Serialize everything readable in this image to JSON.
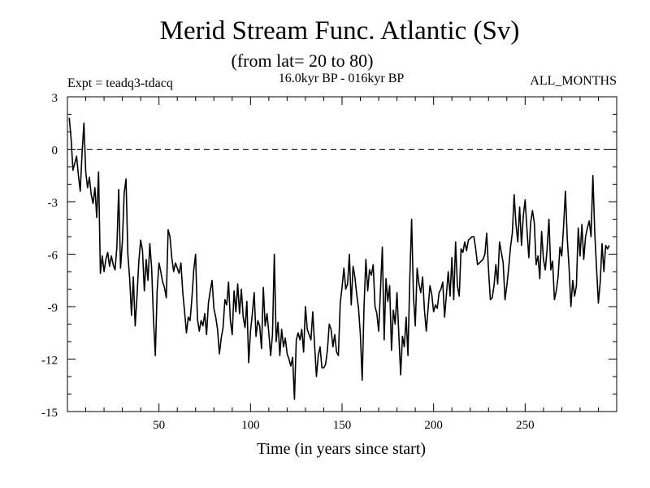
{
  "chart_data": {
    "type": "line",
    "title": "Merid Stream Func. Atlantic (Sv)",
    "subtitle": "(from lat= 20 to 80)",
    "experiment_label": "Expt = teadq3-tdacq",
    "period_label": "16.0kyr BP - 016kyr BP",
    "months_label": "ALL_MONTHS",
    "xlabel": "Time (in years since start)",
    "ylabel": "",
    "xlim": [
      0,
      300
    ],
    "ylim": [
      -15,
      3
    ],
    "x_ticks": [
      50,
      100,
      150,
      200,
      250
    ],
    "y_ticks": [
      3,
      0,
      -3,
      -6,
      -9,
      -12,
      -15
    ],
    "reference_line": 0,
    "series": [
      {
        "name": "Merid Stream Func.",
        "color": "#000000",
        "x_start": 1,
        "x_step": 1,
        "values": [
          1.8,
          0.6,
          -1.2,
          -0.8,
          -0.4,
          -1.5,
          -2.4,
          -0.2,
          1.5,
          -1.3,
          -2.2,
          -1.6,
          -2.6,
          -3.1,
          -2.2,
          -3.9,
          -1.3,
          -7.1,
          -6.1,
          -7.0,
          -6.3,
          -5.9,
          -6.7,
          -6.1,
          -6.6,
          -6.9,
          -5.6,
          -2.3,
          -6.8,
          -5.3,
          -2.5,
          -1.7,
          -6.0,
          -7.4,
          -9.5,
          -7.3,
          -10.1,
          -8.4,
          -6.4,
          -5.2,
          -5.8,
          -8.1,
          -6.3,
          -7.5,
          -5.4,
          -6.8,
          -9.7,
          -11.8,
          -8.1,
          -6.5,
          -7.0,
          -7.6,
          -7.9,
          -8.5,
          -4.6,
          -5.0,
          -6.2,
          -7.0,
          -6.5,
          -6.8,
          -7.1,
          -6.5,
          -8.2,
          -9.3,
          -10.5,
          -9.6,
          -9.8,
          -8.5,
          -6.9,
          -6.0,
          -9.7,
          -10.4,
          -9.8,
          -10.1,
          -9.4,
          -10.6,
          -8.8,
          -8.1,
          -7.5,
          -9.1,
          -9.6,
          -10.3,
          -11.7,
          -10.8,
          -10.2,
          -8.6,
          -8.9,
          -7.6,
          -9.8,
          -10.6,
          -8.1,
          -9.3,
          -7.7,
          -9.4,
          -8.0,
          -9.6,
          -10.2,
          -8.7,
          -12.2,
          -10.4,
          -9.4,
          -8.2,
          -10.7,
          -9.8,
          -10.1,
          -11.4,
          -7.9,
          -10.1,
          -9.4,
          -10.5,
          -11.8,
          -10.6,
          -6.0,
          -11.0,
          -9.9,
          -11.8,
          -10.3,
          -11.3,
          -10.8,
          -11.7,
          -12.0,
          -12.4,
          -11.9,
          -14.3,
          -10.9,
          -10.5,
          -10.9,
          -10.3,
          -11.6,
          -9.0,
          -10.3,
          -10.6,
          -10.9,
          -9.3,
          -11.2,
          -13.0,
          -11.8,
          -11.3,
          -12.5,
          -12.5,
          -12.3,
          -11.5,
          -10.0,
          -10.3,
          -11.3,
          -10.6,
          -11.6,
          -11.8,
          -8.8,
          -7.9,
          -6.8,
          -8.0,
          -7.7,
          -6.0,
          -8.9,
          -6.7,
          -7.3,
          -8.3,
          -9.1,
          -10.6,
          -13.2,
          -9.0,
          -6.3,
          -8.1,
          -6.9,
          -7.2,
          -6.6,
          -9.0,
          -9.4,
          -10.4,
          -8.0,
          -5.6,
          -10.9,
          -7.4,
          -8.7,
          -7.8,
          -11.5,
          -9.2,
          -10.0,
          -8.2,
          -10.6,
          -12.9,
          -10.7,
          -11.3,
          -9.6,
          -11.8,
          -7.4,
          -4.0,
          -8.4,
          -10.1,
          -6.8,
          -7.7,
          -8.2,
          -7.3,
          -9.2,
          -10.4,
          -9.1,
          -7.8,
          -8.3,
          -9.3,
          -8.9,
          -9.1,
          -8.2,
          -8.0,
          -7.6,
          -9.6,
          -8.3,
          -7.0,
          -8.4,
          -6.2,
          -8.6,
          -5.3,
          -7.8,
          -8.4,
          -5.7,
          -5.9,
          -5.3,
          -5.8,
          -5.2,
          -5.1,
          -5.0,
          -5.0,
          -5.7,
          -6.6,
          -6.5,
          -6.4,
          -6.3,
          -6.0,
          -4.8,
          -6.9,
          -8.6,
          -8.5,
          -7.8,
          -6.6,
          -7.7,
          -5.3,
          -5.9,
          -6.5,
          -8.6,
          -7.8,
          -6.8,
          -5.6,
          -4.8,
          -2.6,
          -4.3,
          -5.3,
          -3.3,
          -5.5,
          -3.8,
          -2.9,
          -4.6,
          -6.2,
          -4.2,
          -3.5,
          -4.2,
          -6.6,
          -6.1,
          -7.4,
          -4.7,
          -6.3,
          -6.9,
          -5.7,
          -4.0,
          -6.9,
          -6.4,
          -8.6,
          -8.1,
          -7.3,
          -5.6,
          -6.1,
          -4.4,
          -2.4,
          -5.1,
          -6.8,
          -9.0,
          -7.5,
          -8.4,
          -7.8,
          -4.5,
          -6.1,
          -4.3,
          -6.3,
          -5.0,
          -4.5,
          -4.1,
          -5.0,
          -1.5,
          -4.7,
          -6.8,
          -8.8,
          -7.6,
          -5.4,
          -7.0,
          -5.5,
          -5.7,
          -5.5
        ]
      }
    ]
  }
}
